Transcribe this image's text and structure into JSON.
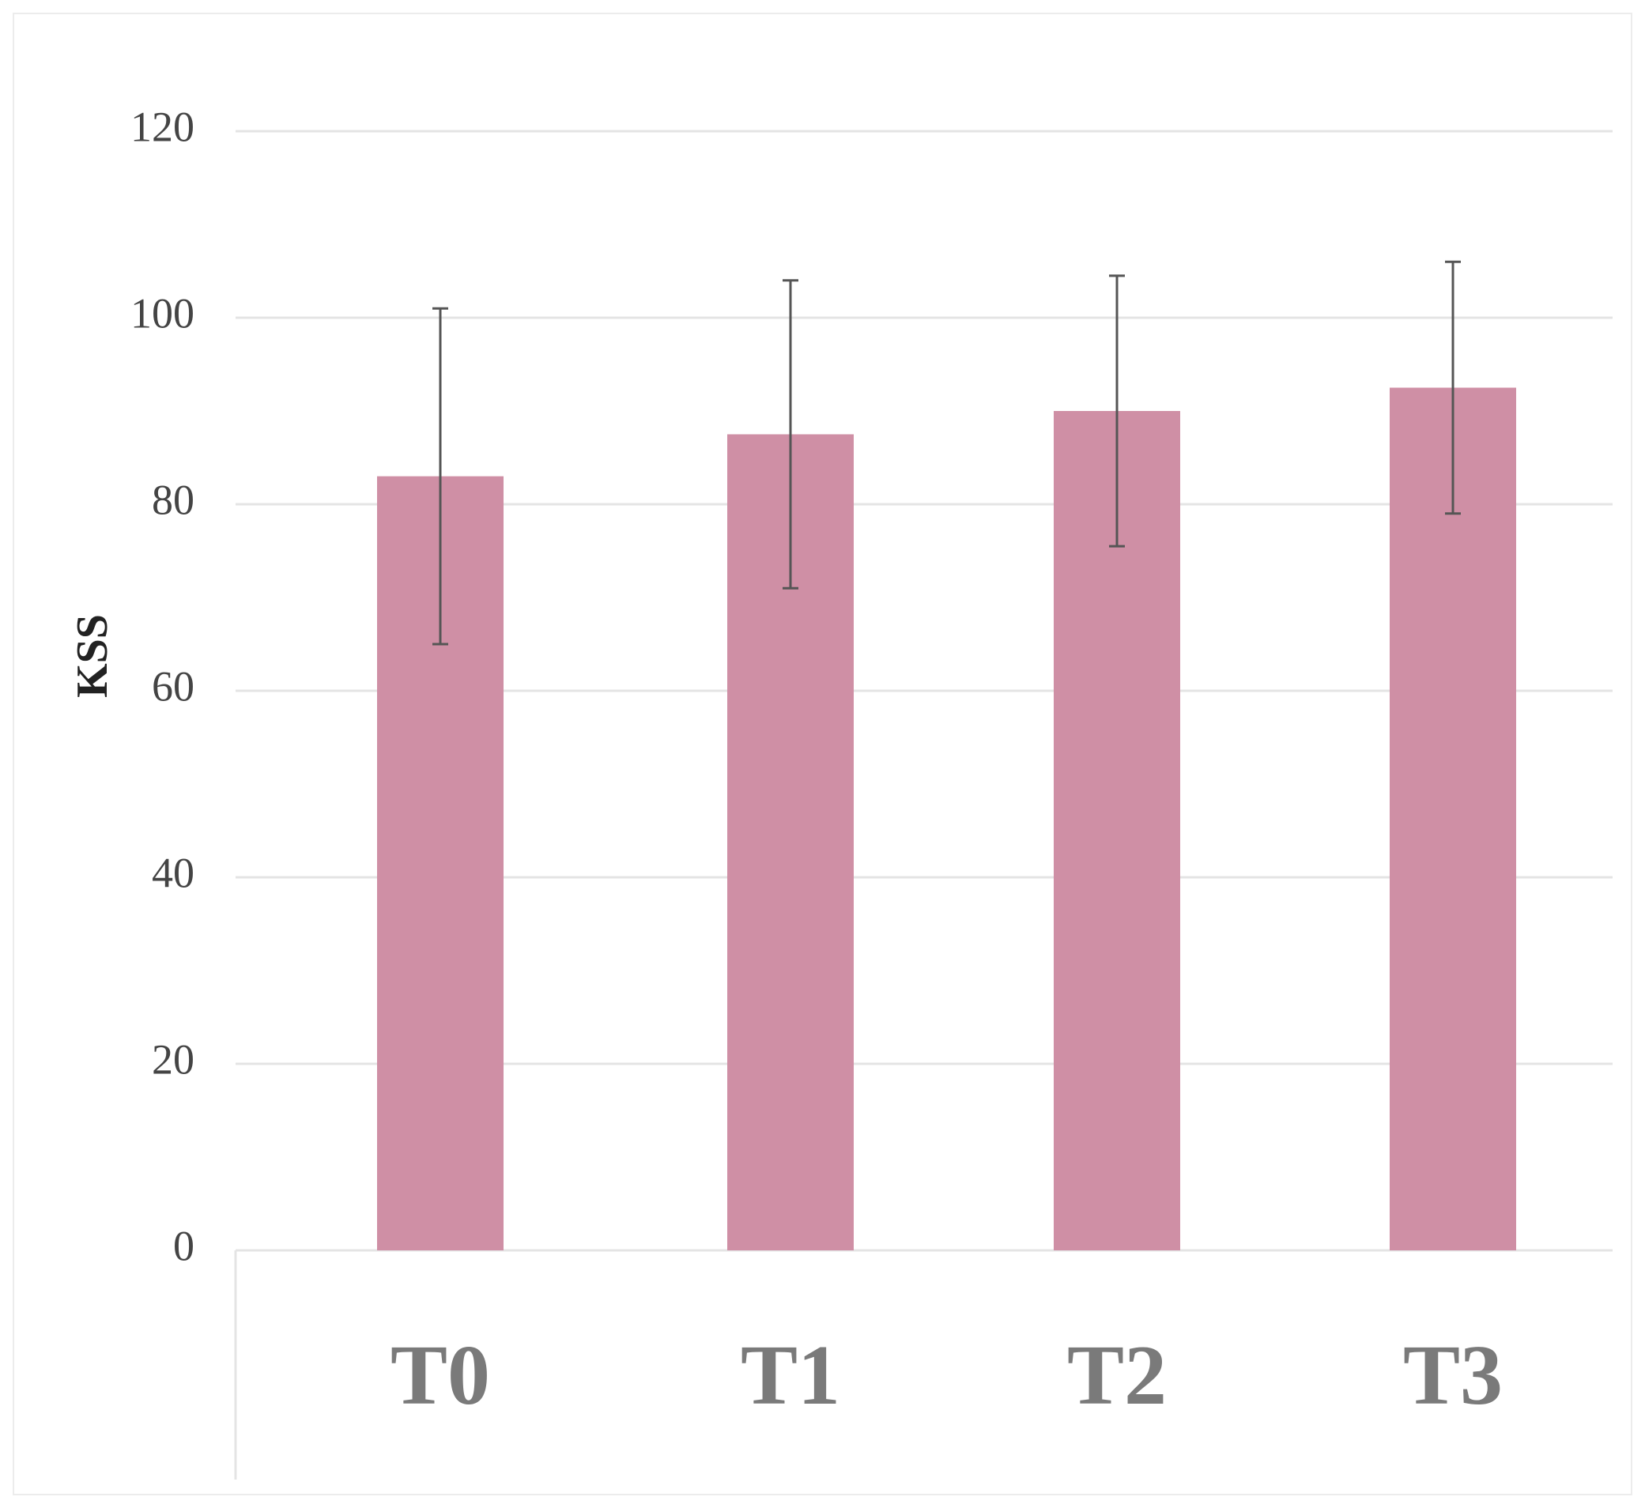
{
  "chart_data": {
    "type": "bar",
    "title": "",
    "xlabel": "",
    "ylabel": "KSS",
    "categories": [
      "T0",
      "T1",
      "T2",
      "T3"
    ],
    "series": [
      {
        "values": [
          83,
          87.5,
          90,
          92.5
        ],
        "error": [
          18,
          16.5,
          14.5,
          13.5
        ]
      }
    ],
    "ylim": [
      0,
      120
    ],
    "yticks": [
      0,
      20,
      40,
      60,
      80,
      100,
      120
    ],
    "grid": true,
    "legend": "none",
    "colors": {
      "bar": "#cf8fa5",
      "error_bar": "#555555",
      "grid": "#e4e4e4",
      "category_label": "#7a7a7a"
    }
  }
}
